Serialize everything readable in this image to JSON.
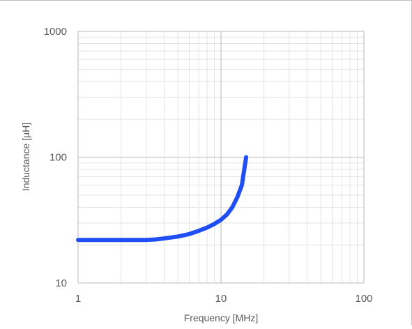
{
  "chart_data": {
    "type": "line",
    "title": "",
    "xlabel": "Frequency [MHz]",
    "ylabel": "Inductance  [µH]",
    "x_scale": "log",
    "y_scale": "log",
    "xlim": [
      1,
      100
    ],
    "ylim": [
      10,
      1000
    ],
    "x_ticks": [
      {
        "value": 1,
        "label": "1"
      },
      {
        "value": 10,
        "label": "10"
      },
      {
        "value": 100,
        "label": "100"
      }
    ],
    "y_ticks": [
      {
        "value": 10,
        "label": "10"
      },
      {
        "value": 100,
        "label": "100"
      },
      {
        "value": 1000,
        "label": "1000"
      }
    ],
    "grid": "major and minor",
    "legend": "none",
    "series": [
      {
        "color": "#1f4ef5",
        "x": [
          1,
          2,
          3,
          3.5,
          4,
          5,
          6,
          7,
          8,
          9,
          10,
          11,
          12,
          13,
          14,
          14.5,
          15
        ],
        "y": [
          22,
          22,
          22,
          22.2,
          22.6,
          23.4,
          24.5,
          26,
          27.6,
          29.5,
          31.8,
          35,
          40,
          48,
          60,
          78,
          100
        ]
      }
    ]
  }
}
